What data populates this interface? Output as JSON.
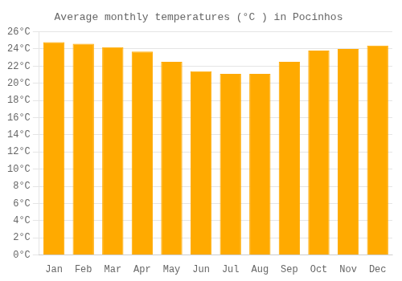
{
  "chart_data": {
    "type": "bar",
    "title": "Average monthly temperatures (°C ) in Pocinhos",
    "categories": [
      "Jan",
      "Feb",
      "Mar",
      "Apr",
      "May",
      "Jun",
      "Jul",
      "Aug",
      "Sep",
      "Oct",
      "Nov",
      "Dec"
    ],
    "values": [
      24.8,
      24.6,
      24.2,
      23.7,
      22.5,
      21.4,
      21.1,
      21.1,
      22.5,
      23.8,
      24.0,
      24.4
    ],
    "color": "#FFAA00",
    "ylim": [
      0,
      26
    ],
    "yticks": [
      {
        "value": 0,
        "label": "0°C"
      },
      {
        "value": 2,
        "label": "2°C"
      },
      {
        "value": 4,
        "label": "4°C"
      },
      {
        "value": 6,
        "label": "6°C"
      },
      {
        "value": 8,
        "label": "8°C"
      },
      {
        "value": 10,
        "label": "10°C"
      },
      {
        "value": 12,
        "label": "12°C"
      },
      {
        "value": 14,
        "label": "14°C"
      },
      {
        "value": 16,
        "label": "16°C"
      },
      {
        "value": 18,
        "label": "18°C"
      },
      {
        "value": 20,
        "label": "20°C"
      },
      {
        "value": 22,
        "label": "22°C"
      },
      {
        "value": 24,
        "label": "24°C"
      },
      {
        "value": 26,
        "label": "26°C"
      }
    ],
    "grid": true
  }
}
